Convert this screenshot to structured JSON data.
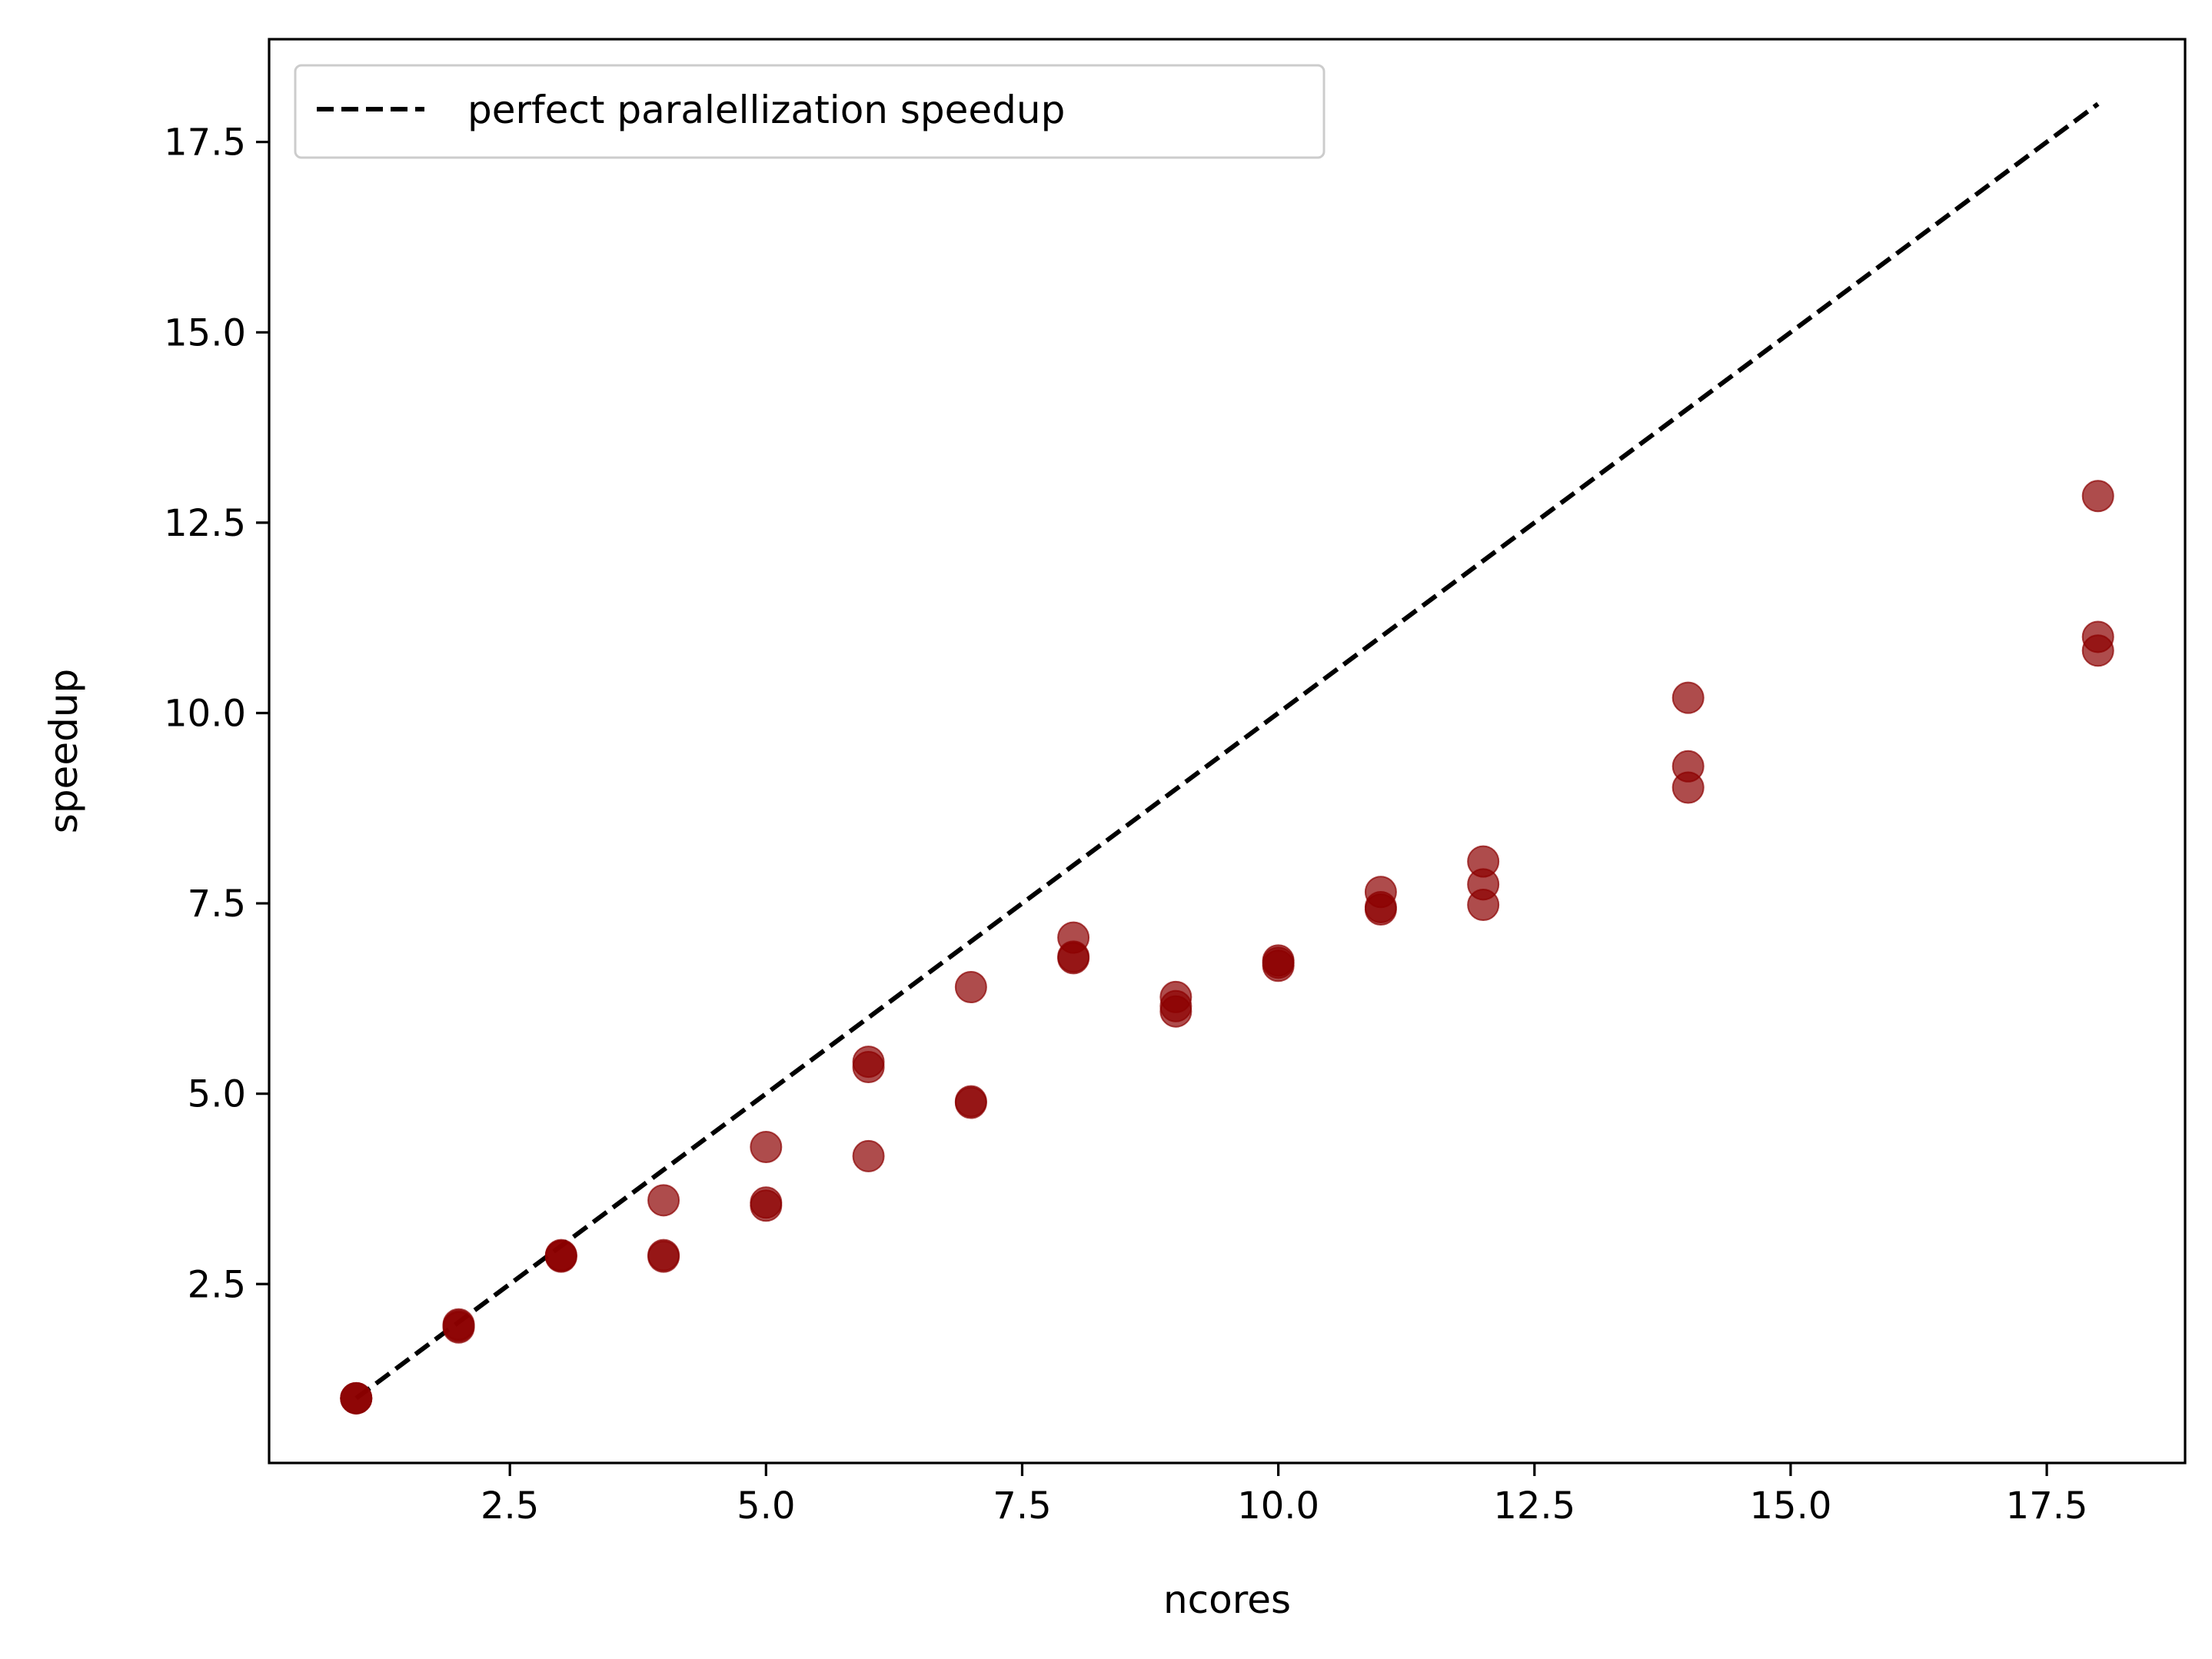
{
  "chart_data": {
    "type": "scatter",
    "xlabel": "ncores",
    "ylabel": "speedup",
    "xlim": [
      0.15,
      18.85
    ],
    "ylim": [
      0.15,
      18.85
    ],
    "xticks": [
      2.5,
      5.0,
      7.5,
      10.0,
      12.5,
      15.0,
      17.5
    ],
    "xtick_labels": [
      "2.5",
      "5.0",
      "7.5",
      "10.0",
      "12.5",
      "15.0",
      "17.5"
    ],
    "yticks": [
      2.5,
      5.0,
      7.5,
      10.0,
      12.5,
      15.0,
      17.5
    ],
    "ytick_labels": [
      "2.5",
      "5.0",
      "7.5",
      "10.0",
      "12.5",
      "15.0",
      "17.5"
    ],
    "grid": false,
    "legend": {
      "placement": "top-left",
      "entries": [
        {
          "label": "perfect paralellization speedup",
          "style": "dashed",
          "color": "#000000"
        }
      ]
    },
    "series": [
      {
        "type": "line",
        "style": "dashed",
        "color": "#000000",
        "x": [
          1,
          18
        ],
        "y": [
          1,
          18
        ]
      },
      {
        "type": "scatter",
        "color": "#8b0000",
        "alpha": 0.7,
        "points": [
          [
            1,
            1.0
          ],
          [
            1,
            1.0
          ],
          [
            1,
            1.0
          ],
          [
            2,
            1.95
          ],
          [
            2,
            1.97
          ],
          [
            2,
            1.93
          ],
          [
            3,
            2.88
          ],
          [
            3,
            2.86
          ],
          [
            3,
            2.87
          ],
          [
            4,
            3.6
          ],
          [
            4,
            2.88
          ],
          [
            4,
            2.86
          ],
          [
            5,
            4.3
          ],
          [
            5,
            3.57
          ],
          [
            5,
            3.53
          ],
          [
            6,
            5.42
          ],
          [
            6,
            5.35
          ],
          [
            6,
            4.18
          ],
          [
            7,
            6.4
          ],
          [
            7,
            4.9
          ],
          [
            7,
            4.88
          ],
          [
            8,
            7.05
          ],
          [
            8,
            6.8
          ],
          [
            8,
            6.78
          ],
          [
            9,
            6.27
          ],
          [
            9,
            6.15
          ],
          [
            9,
            6.08
          ],
          [
            10,
            6.75
          ],
          [
            10,
            6.72
          ],
          [
            10,
            6.68
          ],
          [
            11,
            7.65
          ],
          [
            11,
            7.45
          ],
          [
            11,
            7.42
          ],
          [
            12,
            8.05
          ],
          [
            12,
            7.75
          ],
          [
            12,
            7.48
          ],
          [
            14,
            10.2
          ],
          [
            14,
            9.3
          ],
          [
            14,
            9.02
          ],
          [
            18,
            12.85
          ],
          [
            18,
            11.0
          ],
          [
            18,
            10.82
          ]
        ]
      }
    ]
  }
}
